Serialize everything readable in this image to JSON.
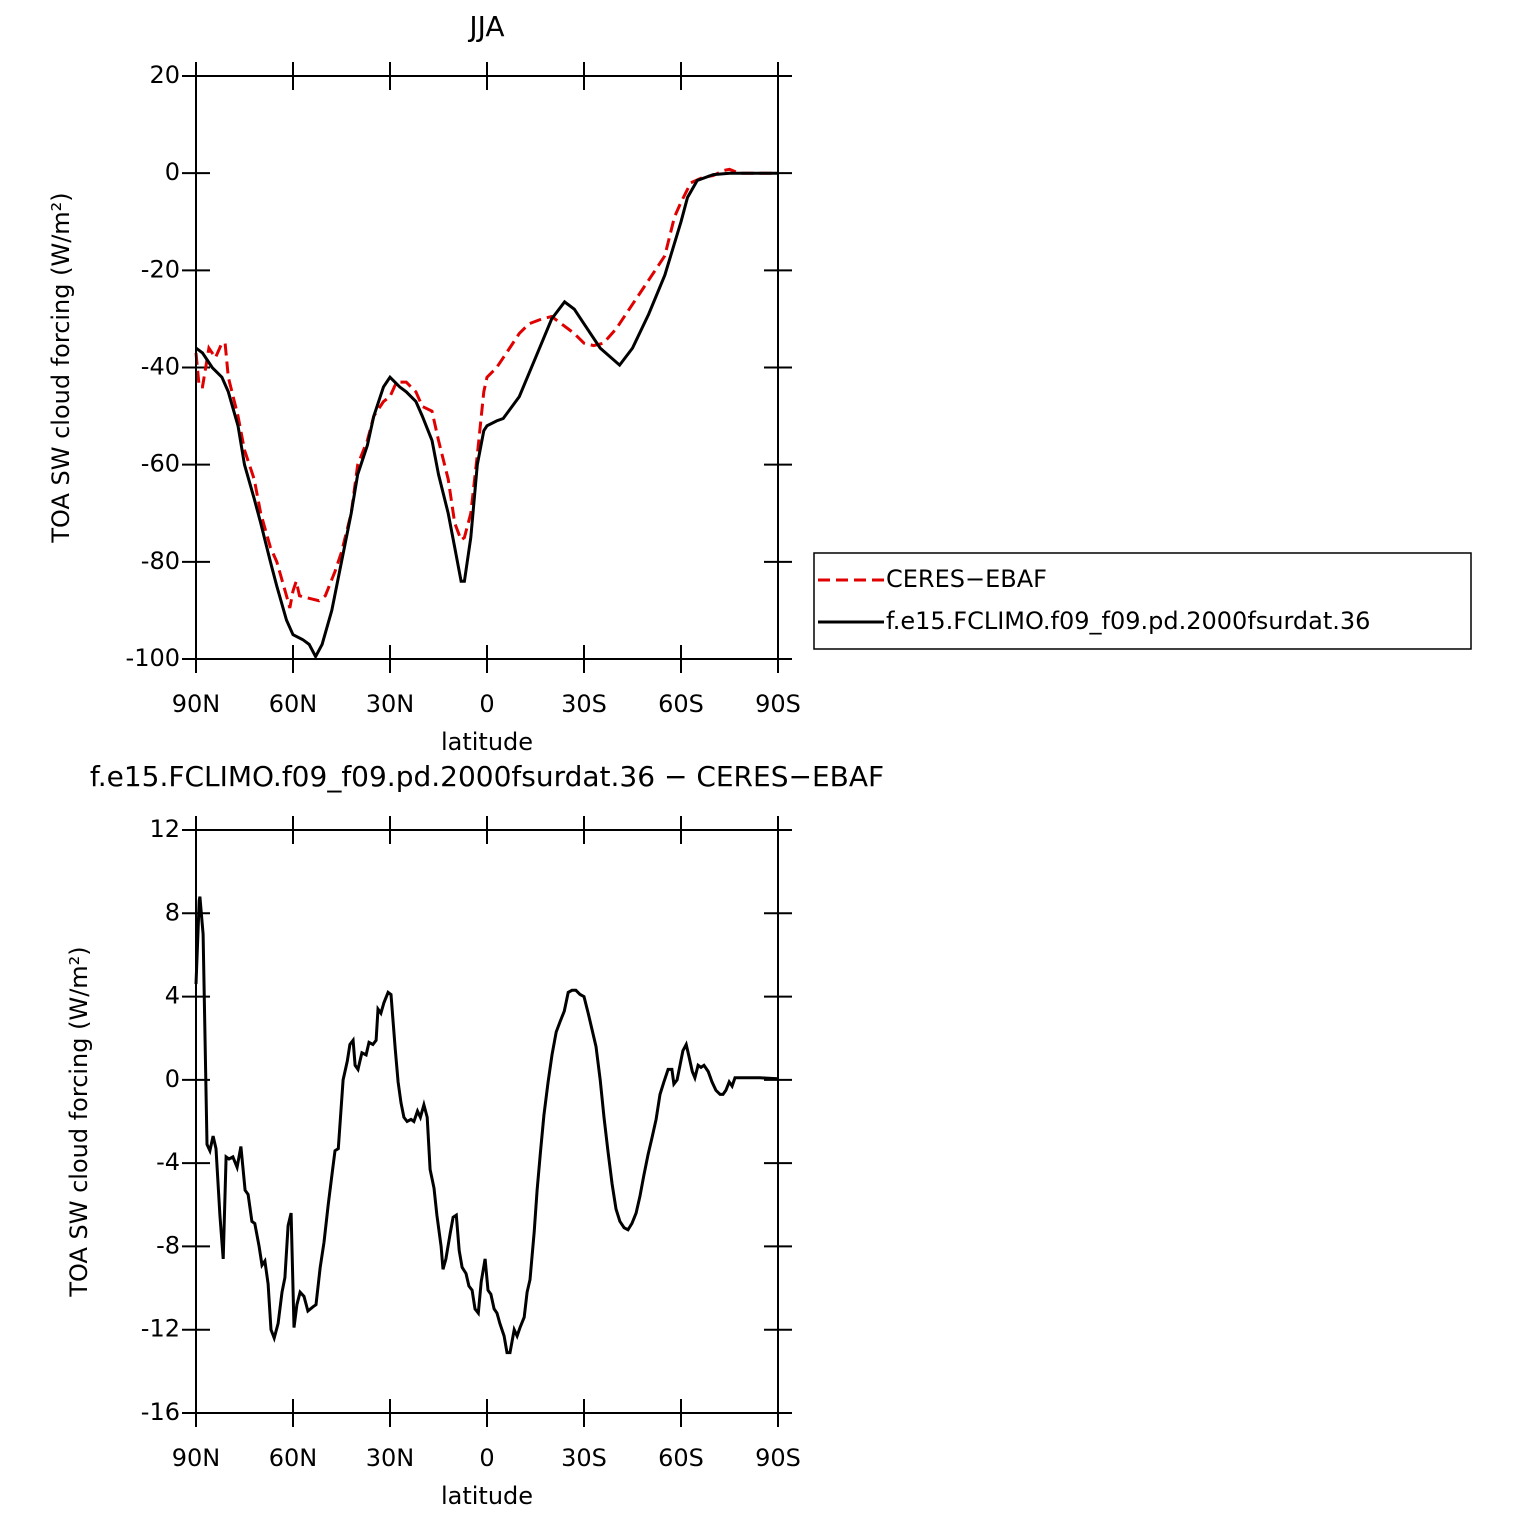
{
  "chart_data": [
    {
      "type": "line",
      "title": "JJA",
      "xlabel": "latitude",
      "ylabel": "TOA SW cloud forcing (W/m²)",
      "xlim": [
        90,
        -90
      ],
      "ylim": [
        -100,
        20
      ],
      "xticks": [
        {
          "value": 90,
          "label": "90N"
        },
        {
          "value": 60,
          "label": "60N"
        },
        {
          "value": 30,
          "label": "30N"
        },
        0,
        {
          "value": -30,
          "label": "30S"
        },
        {
          "value": -60,
          "label": "60S"
        },
        {
          "value": -90,
          "label": "90S"
        }
      ],
      "yticks": [
        -100,
        -80,
        -60,
        -40,
        -20,
        0,
        20
      ],
      "legend": "right",
      "series": [
        {
          "name": "CERES−EBAF",
          "color": "#e00000",
          "linestyle": "dashed",
          "x": [
            90,
            89,
            88,
            86,
            84,
            82,
            81,
            80,
            77,
            75,
            72,
            70,
            67,
            65,
            62,
            61,
            60,
            59,
            58,
            55,
            52,
            50,
            47,
            45,
            42,
            40,
            37,
            35,
            32,
            30,
            28,
            25,
            22,
            20,
            17,
            15,
            12,
            10,
            8,
            7,
            5,
            3,
            1,
            0,
            -3,
            -5,
            -10,
            -13,
            -17,
            -20,
            -23,
            -27,
            -30,
            -33,
            -36,
            -40,
            -45,
            -50,
            -55,
            -58,
            -60,
            -63,
            -67,
            -70,
            -73,
            -75,
            -78,
            -90
          ],
          "values": [
            -37,
            -44,
            -44,
            -36,
            -38,
            -35,
            -35,
            -42,
            -50,
            -57,
            -63,
            -70,
            -77,
            -80,
            -87,
            -89.5,
            -86,
            -84,
            -87,
            -87.5,
            -88,
            -87,
            -82,
            -78,
            -70,
            -60,
            -55,
            -50,
            -47,
            -46,
            -43,
            -43,
            -45,
            -48,
            -49,
            -55,
            -63,
            -72,
            -75.5,
            -75,
            -70,
            -58,
            -45,
            -42,
            -40,
            -38,
            -33,
            -31,
            -30,
            -29.5,
            -31,
            -33,
            -35,
            -35.5,
            -35,
            -32,
            -27,
            -22,
            -17,
            -9,
            -6,
            -2,
            -0.8,
            -0.5,
            0.5,
            0.8,
            0,
            0
          ]
        },
        {
          "name": "f.e15.FCLIMO.f09_f09.pd.2000fsurdat.36",
          "color": "#000000",
          "linestyle": "solid",
          "x": [
            90,
            88,
            85,
            82,
            80,
            77,
            75,
            72,
            70,
            67,
            65,
            62,
            60,
            57,
            55,
            53,
            51,
            48,
            45,
            42,
            40,
            37,
            35,
            32,
            30,
            27,
            25,
            22,
            20,
            17,
            15,
            12,
            10,
            8,
            7,
            5,
            3,
            1,
            0,
            -3,
            -5,
            -10,
            -15,
            -20,
            -24,
            -27,
            -30,
            -35,
            -41,
            -45,
            -50,
            -55,
            -60,
            -62,
            -65,
            -70,
            -75,
            -90
          ],
          "values": [
            -36,
            -37,
            -40,
            -42,
            -45,
            -52,
            -60,
            -67,
            -72,
            -80,
            -85,
            -92,
            -95,
            -96,
            -97,
            -99.5,
            -97,
            -90,
            -80,
            -70,
            -62,
            -56,
            -50,
            -44,
            -42,
            -44,
            -45,
            -47,
            -50,
            -55,
            -62,
            -70,
            -77,
            -84,
            -84,
            -75,
            -60,
            -53,
            -52,
            -51,
            -50.5,
            -46,
            -38,
            -30,
            -26.5,
            -28,
            -31,
            -36,
            -39.5,
            -36,
            -29,
            -21,
            -10,
            -5,
            -1.5,
            -0.3,
            0,
            0
          ]
        }
      ]
    },
    {
      "type": "line",
      "title": "f.e15.FCLIMO.f09_f09.pd.2000fsurdat.36 − CERES−EBAF",
      "xlabel": "latitude",
      "ylabel": "TOA SW cloud forcing (W/m²)",
      "xlim": [
        90,
        -90
      ],
      "ylim": [
        -16,
        12
      ],
      "xticks": [
        {
          "value": 90,
          "label": "90N"
        },
        {
          "value": 60,
          "label": "60N"
        },
        {
          "value": 30,
          "label": "30N"
        },
        0,
        {
          "value": -30,
          "label": "30S"
        },
        {
          "value": -60,
          "label": "60S"
        },
        {
          "value": -90,
          "label": "90S"
        }
      ],
      "yticks": [
        -16,
        -12,
        -8,
        -4,
        0,
        4,
        8,
        12
      ],
      "series": [
        {
          "color": "#000000",
          "linestyle": "solid",
          "x": [
            90,
            89,
            88.8,
            87.8,
            86.6,
            85.7,
            84.7,
            83.8,
            82.6,
            81.6,
            80.7,
            79.8,
            78.6,
            77.3,
            76.1,
            74.8,
            73.9,
            72.7,
            71.8,
            70.5,
            69.6,
            68.7,
            67.7,
            66.8,
            65.8,
            64.6,
            63.4,
            62.5,
            61.5,
            60.6,
            59.7,
            58.8,
            57.8,
            56.6,
            55.4,
            53.8,
            52.9,
            51.6,
            50.4,
            49.1,
            47.9,
            47,
            46,
            44.5,
            43.2,
            42.4,
            41.4,
            40.8,
            39.9,
            38.7,
            37.4,
            36.5,
            35.3,
            34.3,
            33.7,
            32.8,
            31.9,
            30.6,
            29.7,
            28.4,
            27.5,
            26.6,
            25.7,
            24.7,
            23.5,
            22.6,
            21.5,
            20.6,
            19.5,
            18.5,
            17.6,
            16.4,
            15.5,
            14.2,
            13.6,
            12.7,
            11.4,
            10.5,
            9.5,
            8.6,
            7.7,
            6.5,
            5.6,
            4.6,
            3.7,
            2.7,
            1.8,
            0.6,
            -0.3,
            -1.2,
            -2.2,
            -3.1,
            -4,
            -5.3,
            -6.2,
            -7.1,
            -8.4,
            -9.3,
            -10.2,
            -11.5,
            -12.4,
            -13.3,
            -14.6,
            -15.5,
            -16.5,
            -17.6,
            -18.9,
            -20.1,
            -21.4,
            -22.6,
            -23.9,
            -25.1,
            -26.3,
            -27.5,
            -28.8,
            -30,
            -31.3,
            -32.5,
            -33.7,
            -35,
            -36.2,
            -37.4,
            -38.7,
            -39.9,
            -41.1,
            -42.4,
            -43.6,
            -44.8,
            -46.1,
            -47.3,
            -48.5,
            -49.8,
            -51,
            -52.3,
            -53.5,
            -54.7,
            -56,
            -57.2,
            -57.8,
            -58.8,
            -59.7,
            -60.6,
            -61.6,
            -62.5,
            -63.5,
            -64.3,
            -65.3,
            -66.2,
            -67.1,
            -68.4,
            -69.6,
            -70.8,
            -72.1,
            -73,
            -73.9,
            -74.9,
            -75.8,
            -76.7,
            -78.3,
            -81.4,
            -84.5,
            -90
          ],
          "values": [
            4.6,
            8.6,
            8.8,
            7,
            -3.1,
            -3.4,
            -2.7,
            -3.3,
            -6.5,
            -8.6,
            -3.7,
            -3.8,
            -3.7,
            -4.2,
            -3.2,
            -5.3,
            -5.5,
            -6.8,
            -6.9,
            -8,
            -8.9,
            -8.7,
            -9.8,
            -12,
            -12.4,
            -11.7,
            -10.2,
            -9.5,
            -7,
            -6.4,
            -11.9,
            -10.8,
            -10.2,
            -10.4,
            -11.1,
            -10.9,
            -10.8,
            -9,
            -7.8,
            -6,
            -4.5,
            -3.4,
            -3.3,
            0,
            0.9,
            1.7,
            1.9,
            0.7,
            0.5,
            1.3,
            1.2,
            1.8,
            1.7,
            1.9,
            3.4,
            3.2,
            3.7,
            4.2,
            4.1,
            1.5,
            -0.1,
            -1.1,
            -1.8,
            -2,
            -1.9,
            -2,
            -1.5,
            -1.8,
            -1.2,
            -1.8,
            -4.3,
            -5.2,
            -6.5,
            -8,
            -9.1,
            -8.6,
            -7.4,
            -6.6,
            -6.5,
            -8.2,
            -9,
            -9.3,
            -9.9,
            -10.1,
            -11,
            -11.2,
            -9.7,
            -8.6,
            -10.1,
            -10.3,
            -11,
            -11.2,
            -11.7,
            -12.3,
            -13.1,
            -13.1,
            -12,
            -12.3,
            -11.9,
            -11.4,
            -10.2,
            -9.6,
            -7.3,
            -5.3,
            -3.5,
            -1.7,
            -0.1,
            1.2,
            2.3,
            2.8,
            3.3,
            4.2,
            4.3,
            4.3,
            4.1,
            4,
            3.2,
            2.4,
            1.6,
            0,
            -1.8,
            -3.4,
            -5,
            -6.2,
            -6.8,
            -7.1,
            -7.2,
            -6.9,
            -6.4,
            -5.6,
            -4.6,
            -3.6,
            -2.8,
            -1.9,
            -0.7,
            -0.1,
            0.5,
            0.5,
            -0.2,
            0,
            0.7,
            1.4,
            1.7,
            1.1,
            0.4,
            0.1,
            0.7,
            0.6,
            0.7,
            0.4,
            -0.1,
            -0.5,
            -0.7,
            -0.7,
            -0.5,
            -0.1,
            -0.3,
            0.1,
            0.1,
            0.1,
            0.1,
            0.05
          ]
        }
      ]
    }
  ]
}
